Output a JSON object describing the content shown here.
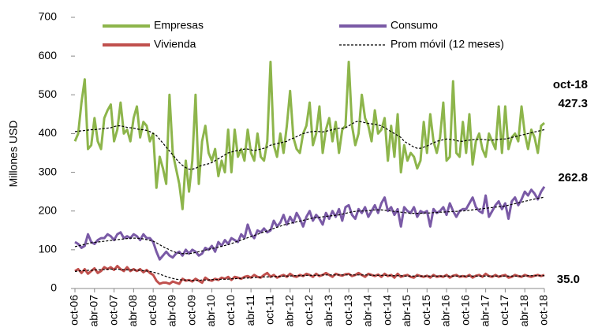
{
  "chart_data": {
    "type": "line",
    "y_label": "Millones USD",
    "ylim": [
      0,
      700
    ],
    "yticks": [
      0,
      100,
      200,
      300,
      400,
      500,
      600,
      700
    ],
    "categories": [
      "oct-06",
      null,
      null,
      null,
      null,
      null,
      "abr-07",
      null,
      null,
      null,
      null,
      null,
      "oct-07",
      null,
      null,
      null,
      null,
      null,
      "abr-08",
      null,
      null,
      null,
      null,
      null,
      "oct-08",
      null,
      null,
      null,
      null,
      null,
      "abr-09",
      null,
      null,
      null,
      null,
      null,
      "oct-09",
      null,
      null,
      null,
      null,
      null,
      "abr-10",
      null,
      null,
      null,
      null,
      null,
      "oct-10",
      null,
      null,
      null,
      null,
      null,
      "abr-11",
      null,
      null,
      null,
      null,
      null,
      "oct-11",
      null,
      null,
      null,
      null,
      null,
      "abr-12",
      null,
      null,
      null,
      null,
      null,
      "oct-12",
      null,
      null,
      null,
      null,
      null,
      "abr-13",
      null,
      null,
      null,
      null,
      null,
      "oct-13",
      null,
      null,
      null,
      null,
      null,
      "abr-14",
      null,
      null,
      null,
      null,
      null,
      "oct-14",
      null,
      null,
      null,
      null,
      null,
      "abr-15",
      null,
      null,
      null,
      null,
      null,
      "oct-15",
      null,
      null,
      null,
      null,
      null,
      "abr-16",
      null,
      null,
      null,
      null,
      null,
      "oct-16",
      null,
      null,
      null,
      null,
      null,
      "abr-17",
      null,
      null,
      null,
      null,
      null,
      "oct-17",
      null,
      null,
      null,
      null,
      null,
      "abr-18",
      null,
      null,
      null,
      null,
      null,
      "oct-18"
    ],
    "moving_average_legend": "Prom móvil (12 meses)",
    "moving_average_color": "#000000",
    "series": [
      {
        "name": "Empresas",
        "color": "#8db54b",
        "values": [
          380,
          400,
          480,
          540,
          360,
          370,
          440,
          380,
          360,
          440,
          460,
          475,
          380,
          410,
          480,
          400,
          410,
          380,
          440,
          470,
          390,
          430,
          420,
          380,
          400,
          260,
          340,
          310,
          270,
          500,
          350,
          310,
          270,
          205,
          330,
          250,
          330,
          500,
          270,
          380,
          420,
          350,
          330,
          360,
          290,
          330,
          300,
          410,
          300,
          410,
          340,
          360,
          330,
          410,
          350,
          330,
          400,
          340,
          330,
          380,
          585,
          370,
          340,
          400,
          350,
          420,
          510,
          390,
          360,
          350,
          400,
          420,
          480,
          370,
          400,
          470,
          350,
          410,
          440,
          380,
          430,
          350,
          410,
          420,
          585,
          420,
          370,
          400,
          500,
          440,
          420,
          380,
          460,
          400,
          410,
          440,
          330,
          420,
          340,
          450,
          300,
          370,
          330,
          350,
          340,
          310,
          330,
          430,
          350,
          450,
          380,
          350,
          390,
          480,
          330,
          340,
          535,
          350,
          340,
          430,
          350,
          450,
          320,
          380,
          400,
          360,
          340,
          400,
          380,
          360,
          470,
          350,
          470,
          360,
          390,
          400,
          380,
          470,
          400,
          360,
          410,
          390,
          350,
          420,
          427.3
        ],
        "moving_average": [
          405,
          406,
          407,
          408,
          409,
          410,
          410,
          411,
          412,
          413,
          414,
          415,
          418,
          420,
          420,
          418,
          416,
          415,
          414,
          412,
          410,
          410,
          408,
          405,
          400,
          395,
          385,
          375,
          365,
          355,
          345,
          335,
          325,
          318,
          312,
          308,
          308,
          310,
          315,
          318,
          320,
          322,
          325,
          330,
          335,
          340,
          345,
          350,
          352,
          355,
          356,
          358,
          360,
          360,
          358,
          356,
          358,
          360,
          362,
          365,
          370,
          372,
          374,
          376,
          378,
          380,
          385,
          388,
          392,
          396,
          400,
          402,
          404,
          405,
          406,
          405,
          404,
          406,
          408,
          410,
          412,
          414,
          414,
          415,
          420,
          425,
          430,
          432,
          430,
          428,
          426,
          425,
          424,
          422,
          420,
          415,
          410,
          405,
          400,
          395,
          390,
          380,
          375,
          370,
          365,
          362,
          362,
          365,
          368,
          372,
          376,
          380,
          382,
          384,
          386,
          385,
          384,
          382,
          380,
          380,
          382,
          383,
          384,
          385,
          385,
          385,
          384,
          383,
          383,
          384,
          385,
          386,
          386,
          388,
          390,
          392,
          394,
          396,
          398,
          400,
          402,
          404,
          406,
          408,
          410
        ]
      },
      {
        "name": "Consumo",
        "color": "#7a5aa6",
        "values": [
          120,
          115,
          105,
          110,
          140,
          120,
          115,
          125,
          130,
          130,
          140,
          135,
          125,
          140,
          145,
          130,
          135,
          130,
          140,
          135,
          125,
          140,
          130,
          130,
          120,
          95,
          75,
          85,
          95,
          85,
          80,
          90,
          95,
          85,
          100,
          90,
          100,
          95,
          85,
          90,
          105,
          100,
          110,
          95,
          120,
          110,
          125,
          115,
          130,
          125,
          120,
          140,
          130,
          165,
          140,
          130,
          150,
          145,
          155,
          145,
          150,
          175,
          160,
          170,
          190,
          165,
          185,
          170,
          195,
          180,
          160,
          185,
          200,
          175,
          190,
          180,
          165,
          195,
          180,
          200,
          185,
          205,
          175,
          210,
          215,
          190,
          180,
          205,
          195,
          210,
          185,
          200,
          215,
          195,
          220,
          235,
          200,
          210,
          190,
          205,
          160,
          210,
          200,
          195,
          210,
          185,
          200,
          195,
          200,
          160,
          205,
          195,
          200,
          210,
          190,
          220,
          200,
          185,
          200,
          205,
          205,
          220,
          235,
          210,
          200,
          195,
          240,
          185,
          200,
          215,
          225,
          205,
          220,
          180,
          225,
          235,
          215,
          230,
          250,
          240,
          255,
          245,
          230,
          250,
          262.8
        ],
        "moving_average": [
          108,
          110,
          112,
          114,
          116,
          118,
          119,
          120,
          121,
          122,
          123,
          124,
          125,
          126,
          127,
          128,
          129,
          130,
          130,
          130,
          129,
          128,
          126,
          124,
          122,
          118,
          113,
          108,
          104,
          100,
          96,
          93,
          91,
          90,
          90,
          90,
          91,
          93,
          95,
          97,
          99,
          101,
          103,
          105,
          107,
          109,
          111,
          113,
          116,
          119,
          122,
          125,
          128,
          131,
          134,
          137,
          140,
          143,
          146,
          149,
          152,
          155,
          158,
          161,
          164,
          166,
          168,
          170,
          172,
          174,
          176,
          178,
          180,
          182,
          183,
          184,
          185,
          186,
          187,
          188,
          189,
          190,
          192,
          194,
          196,
          198,
          199,
          200,
          200,
          200,
          201,
          202,
          203,
          203,
          203,
          202,
          201,
          200,
          199,
          198,
          197,
          196,
          195,
          194,
          194,
          194,
          194,
          195,
          195,
          195,
          196,
          196,
          197,
          197,
          198,
          198,
          199,
          199,
          200,
          200,
          201,
          202,
          203,
          204,
          205,
          206,
          207,
          208,
          209,
          210,
          211,
          212,
          213,
          215,
          217,
          219,
          221,
          223,
          225,
          227,
          229,
          231,
          233,
          234,
          236
        ]
      },
      {
        "name": "Vivienda",
        "color": "#c0504d",
        "values": [
          45,
          50,
          40,
          50,
          38,
          45,
          52,
          40,
          45,
          55,
          50,
          55,
          48,
          58,
          50,
          45,
          55,
          45,
          50,
          45,
          50,
          42,
          48,
          40,
          35,
          20,
          12,
          15,
          15,
          12,
          18,
          15,
          12,
          25,
          20,
          22,
          18,
          25,
          20,
          15,
          28,
          22,
          20,
          25,
          22,
          28,
          25,
          30,
          22,
          30,
          28,
          25,
          30,
          32,
          28,
          35,
          30,
          28,
          35,
          40,
          30,
          35,
          28,
          32,
          35,
          30,
          38,
          32,
          30,
          35,
          32,
          38,
          35,
          30,
          38,
          32,
          35,
          40,
          35,
          30,
          38,
          35,
          33,
          37,
          38,
          32,
          35,
          40,
          35,
          30,
          38,
          35,
          32,
          36,
          30,
          38,
          32,
          35,
          28,
          38,
          30,
          33,
          35,
          30,
          28,
          35,
          32,
          30,
          33,
          28,
          35,
          30,
          32,
          30,
          35,
          28,
          33,
          35,
          30,
          32,
          30,
          35,
          28,
          33,
          35,
          30,
          38,
          32,
          30,
          35,
          30,
          33,
          35,
          28,
          30,
          35,
          32,
          30,
          35,
          32,
          30,
          33,
          35,
          32,
          35
        ],
        "moving_average": [
          44,
          45,
          46,
          46,
          47,
          47,
          48,
          48,
          49,
          49,
          50,
          50,
          50,
          50,
          49,
          49,
          48,
          48,
          48,
          47,
          47,
          46,
          45,
          44,
          42,
          40,
          37,
          34,
          31,
          28,
          26,
          24,
          23,
          22,
          22,
          21,
          21,
          21,
          21,
          22,
          22,
          22,
          23,
          23,
          23,
          24,
          24,
          24,
          25,
          25,
          26,
          26,
          27,
          27,
          28,
          28,
          29,
          29,
          30,
          30,
          30,
          31,
          31,
          31,
          32,
          32,
          32,
          33,
          33,
          33,
          33,
          34,
          34,
          34,
          34,
          34,
          35,
          35,
          35,
          35,
          35,
          35,
          35,
          35,
          35,
          35,
          35,
          35,
          35,
          35,
          35,
          34,
          34,
          34,
          34,
          34,
          34,
          33,
          33,
          33,
          33,
          32,
          32,
          32,
          32,
          32,
          32,
          32,
          32,
          32,
          32,
          32,
          32,
          32,
          32,
          32,
          32,
          32,
          32,
          32,
          32,
          32,
          32,
          32,
          32,
          32,
          32,
          32,
          32,
          32,
          32,
          32,
          32,
          32,
          32,
          32,
          32,
          32,
          32,
          33,
          33,
          33,
          33,
          33,
          33
        ]
      }
    ],
    "annotations": [
      "oct-18",
      "427.3",
      "262.8",
      "35.0"
    ]
  }
}
